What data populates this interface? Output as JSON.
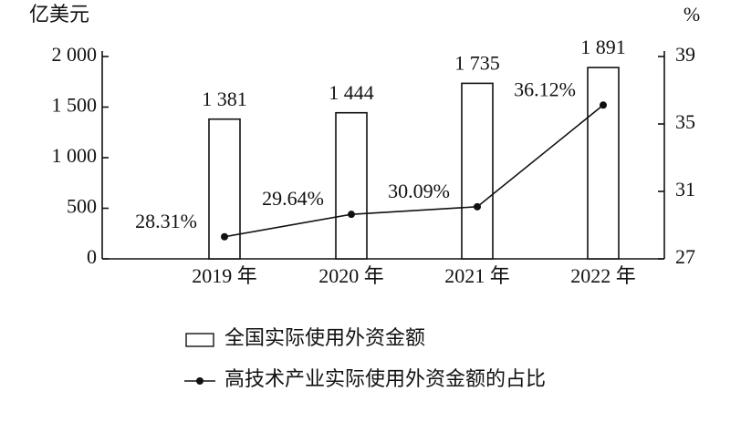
{
  "chart_data": {
    "type": "bar",
    "y_axis_title": "亿美元",
    "y2_axis_title": "%",
    "categories": [
      "2019 年",
      "2020 年",
      "2021 年",
      "2022 年"
    ],
    "series": [
      {
        "name": "全国实际使用外资金额",
        "type": "bar",
        "color": "#ffffff",
        "values": [
          1381,
          1444,
          1735,
          1891
        ],
        "value_labels": [
          "1 381",
          "1 444",
          "1 735",
          "1 891"
        ]
      },
      {
        "name": "高技术产业实际使用外资金额的占比",
        "type": "line",
        "axis": "y2",
        "color": "#111111",
        "values": [
          28.31,
          29.64,
          30.09,
          36.12
        ],
        "value_labels": [
          "28.31%",
          "29.64%",
          "30.09%",
          "36.12%"
        ]
      }
    ],
    "ylim": [
      0,
      2000
    ],
    "yticks": [
      0,
      500,
      {
        "value": 1000,
        "label": "1 000"
      },
      {
        "value": 1500,
        "label": "1 500"
      },
      {
        "value": 2000,
        "label": "2 000"
      }
    ],
    "y2lim": [
      27,
      39
    ],
    "y2ticks": [
      27,
      31,
      35,
      39
    ],
    "legend": "bottom"
  }
}
